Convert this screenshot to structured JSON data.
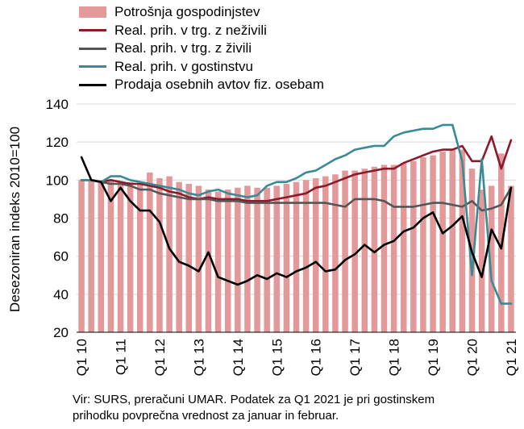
{
  "chart_data": {
    "type": "bar+line",
    "ylabel": "Desezoniran indeks 2010=100",
    "ylim": [
      20,
      140
    ],
    "yticks": [
      20,
      40,
      60,
      80,
      100,
      120,
      140
    ],
    "x_tick_labels": [
      "Q1 10",
      "Q1 11",
      "Q1 12",
      "Q1 13",
      "Q1 14",
      "Q1 15",
      "Q1 16",
      "Q1 17",
      "Q1 18",
      "Q1 19",
      "Q1 20",
      "Q1 21"
    ],
    "x_tick_index": [
      0,
      4,
      8,
      12,
      16,
      20,
      24,
      28,
      32,
      36,
      40,
      44
    ],
    "n_quarters": 45,
    "legend_placement": "top-left",
    "series": [
      {
        "name": "Potrošnja gospodinjstev",
        "kind": "bar",
        "color": "#e3999a",
        "values": [
          100,
          100,
          100,
          100,
          99,
          99,
          98,
          104,
          101,
          102,
          99,
          98,
          97,
          95,
          94,
          95,
          96,
          97,
          96,
          96,
          97,
          98,
          99,
          100,
          101,
          102,
          103,
          105,
          105,
          106,
          107,
          108,
          108,
          109,
          110,
          112,
          113,
          115,
          116,
          116,
          106,
          95,
          97,
          114,
          97
        ]
      },
      {
        "name": "Real. prih. v trg. z neživili",
        "kind": "line",
        "color": "#8b1a2b",
        "values": [
          100,
          100,
          99,
          100,
          99,
          98,
          98,
          97,
          96,
          94,
          93,
          91,
          90,
          91,
          90,
          90,
          90,
          89,
          89,
          89,
          90,
          91,
          92,
          93,
          96,
          97,
          99,
          101,
          103,
          104,
          105,
          106,
          106,
          109,
          111,
          113,
          115,
          116,
          116,
          118,
          110,
          110,
          123,
          106,
          121
        ]
      },
      {
        "name": "Real. prih. v trg. z živili",
        "kind": "line",
        "color": "#555555",
        "values": [
          100,
          100,
          99,
          98,
          98,
          97,
          95,
          95,
          93,
          92,
          91,
          90,
          90,
          90,
          89,
          89,
          89,
          88,
          88,
          88,
          88,
          88,
          88,
          88,
          88,
          88,
          87,
          86,
          90,
          90,
          90,
          89,
          86,
          86,
          86,
          87,
          88,
          88,
          87,
          86,
          89,
          84,
          85,
          87,
          96
        ]
      },
      {
        "name": "Real. prih. v gostinstvu",
        "kind": "line",
        "color": "#3a8a96",
        "values": [
          100,
          100,
          99,
          102,
          102,
          100,
          99,
          98,
          97,
          96,
          95,
          93,
          92,
          94,
          95,
          93,
          92,
          91,
          92,
          97,
          99,
          99,
          101,
          104,
          105,
          108,
          111,
          113,
          116,
          117,
          118,
          118,
          123,
          125,
          126,
          127,
          127,
          129,
          129,
          110,
          50,
          111,
          47,
          35,
          35
        ]
      },
      {
        "name": "Prodaja osebnih avtov fiz. osebam",
        "kind": "line",
        "color": "#000000",
        "values": [
          112,
          100,
          99,
          89,
          96,
          89,
          84,
          84,
          78,
          64,
          57,
          55,
          52,
          62,
          49,
          47,
          45,
          47,
          50,
          48,
          51,
          49,
          52,
          54,
          57,
          52,
          53,
          58,
          61,
          66,
          62,
          66,
          68,
          73,
          75,
          80,
          83,
          72,
          76,
          81,
          62,
          49,
          74,
          64,
          96
        ]
      }
    ]
  },
  "footnote": {
    "line1": "Vir: SURS, preračuni UMAR. Podatek za Q1 2021 je pri gostinskem",
    "line2": "prihodku povprečna vrednost za januar in februar."
  }
}
